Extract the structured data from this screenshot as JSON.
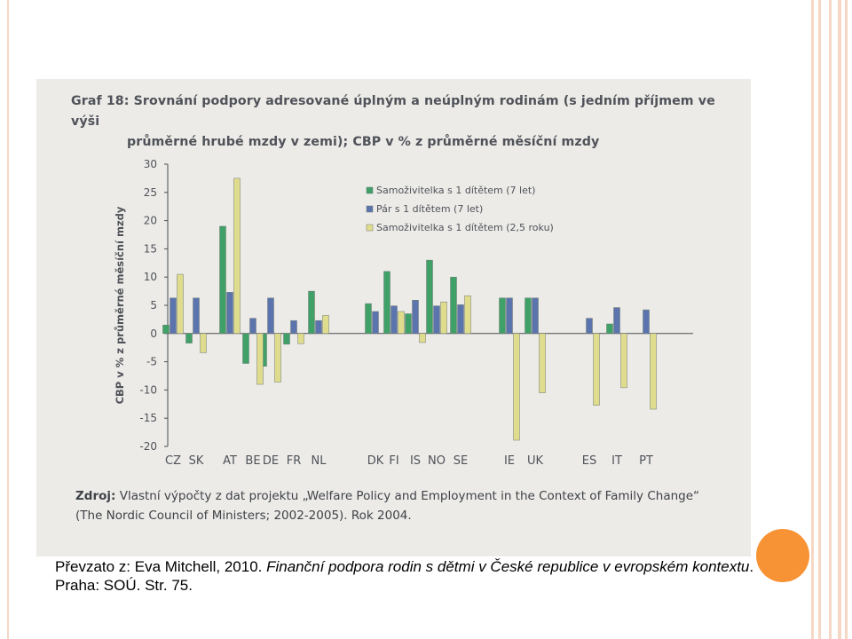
{
  "figure": {
    "title_line1": "Graf 18: Srovnání podpory adresované úplným a neúplným rodinám (s jedním příjmem ve výši",
    "title_line2": "průměrné hrubé mzdy v zemi); CBP v % z průměrné měsíční mzdy",
    "source_lead": "Zdroj:",
    "source_line1": "Vlastní výpočty z dat projektu „Welfare Policy and Employment in the Context of Family Change“",
    "source_line2": "(The Nordic Council of Ministers; 2002-2005). Rok 2004."
  },
  "caption": {
    "prefix": "Převzato z: Eva Mitchell, 2010. ",
    "title": "Finanční podpora rodin s dětmi v České republice v evropském kontextu",
    "suffix": ". Praha: SOÚ. Str. 75."
  },
  "colors": {
    "series1": "#3fa068",
    "series2": "#5b74ad",
    "series3": "#e0dc8e",
    "accent": "#f79334",
    "frame": "#f6d6c4"
  },
  "chart_data": {
    "type": "bar",
    "ylabel": "CBP v % z průměrné měsíční mzdy",
    "ylim": [
      -20,
      30
    ],
    "yticks": [
      30,
      25,
      20,
      15,
      10,
      5,
      0,
      -5,
      -10,
      -15,
      -20
    ],
    "legend_position": "top-right",
    "grid": false,
    "categories": [
      "CZ",
      "SK",
      "AT",
      "BE",
      "DE",
      "FR",
      "NL",
      "DK",
      "FI",
      "IS",
      "NO",
      "SE",
      "IE",
      "UK",
      "ES",
      "IT",
      "PT"
    ],
    "series": [
      {
        "name": "Samoživitelka s 1 dítětem (7 let)",
        "values": [
          1.5,
          -1.7,
          19,
          -5.3,
          -5.8,
          -1.9,
          7.5,
          5.3,
          11,
          3.5,
          13,
          10,
          6.3,
          6.3,
          0,
          1.7,
          0
        ]
      },
      {
        "name": "Pár s 1 dítětem (7 let)",
        "values": [
          6.3,
          6.3,
          7.3,
          2.7,
          6.3,
          2.3,
          2.3,
          3.9,
          4.9,
          5.9,
          4.9,
          5.1,
          6.3,
          6.3,
          2.7,
          4.6,
          4.2
        ]
      },
      {
        "name": "Samoživitelka s 1 dítětem (2,5 roku)",
        "values": [
          10.5,
          -3.4,
          27.5,
          -9.0,
          -8.6,
          -1.8,
          3.2,
          0,
          3.9,
          -1.6,
          5.6,
          6.7,
          -18.9,
          -10.5,
          -12.7,
          -9.6,
          -13.4
        ]
      }
    ]
  }
}
